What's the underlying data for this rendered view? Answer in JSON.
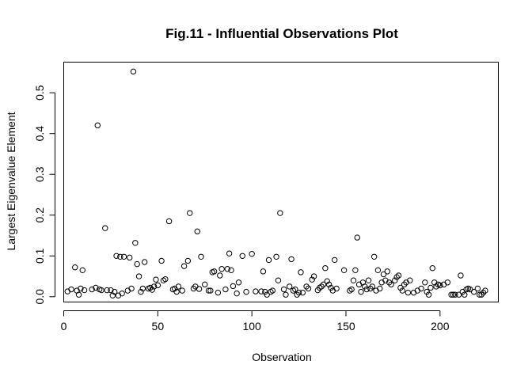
{
  "chart_data": {
    "type": "scatter",
    "title": "Fig.11 - Influential Observations Plot",
    "xlabel": "Observation",
    "ylabel": "Largest Eigenvalue Element",
    "xlim": [
      0,
      231
    ],
    "ylim": [
      -0.013,
      0.575
    ],
    "xticks": [
      0,
      50,
      100,
      150,
      200
    ],
    "yticks": [
      0.0,
      0.1,
      0.2,
      0.3,
      0.4,
      0.5
    ],
    "xtick_labels": [
      "0",
      "50",
      "100",
      "150",
      "200"
    ],
    "ytick_labels": [
      "0.0",
      "0.1",
      "0.2",
      "0.3",
      "0.4",
      "0.5"
    ],
    "grid": false,
    "legend": false,
    "marker": "open-circle",
    "points": [
      [
        2,
        0.013
      ],
      [
        4,
        0.018
      ],
      [
        6,
        0.072
      ],
      [
        7,
        0.015
      ],
      [
        8,
        0.005
      ],
      [
        9,
        0.02
      ],
      [
        10,
        0.065
      ],
      [
        11,
        0.016
      ],
      [
        15,
        0.018
      ],
      [
        17,
        0.022
      ],
      [
        18,
        0.42
      ],
      [
        19,
        0.018
      ],
      [
        20,
        0.016
      ],
      [
        22,
        0.168
      ],
      [
        23,
        0.016
      ],
      [
        25,
        0.016
      ],
      [
        26,
        0.003
      ],
      [
        27,
        0.012
      ],
      [
        28,
        0.1
      ],
      [
        29,
        0.003
      ],
      [
        30,
        0.098
      ],
      [
        31,
        0.008
      ],
      [
        32,
        0.098
      ],
      [
        34,
        0.015
      ],
      [
        35,
        0.096
      ],
      [
        36,
        0.02
      ],
      [
        37,
        0.552
      ],
      [
        38,
        0.132
      ],
      [
        39,
        0.08
      ],
      [
        40,
        0.05
      ],
      [
        41,
        0.012
      ],
      [
        42,
        0.02
      ],
      [
        43,
        0.085
      ],
      [
        45,
        0.02
      ],
      [
        46,
        0.022
      ],
      [
        47,
        0.017
      ],
      [
        48,
        0.025
      ],
      [
        49,
        0.042
      ],
      [
        50,
        0.028
      ],
      [
        52,
        0.088
      ],
      [
        53,
        0.04
      ],
      [
        54,
        0.043
      ],
      [
        56,
        0.185
      ],
      [
        58,
        0.018
      ],
      [
        59,
        0.02
      ],
      [
        60,
        0.012
      ],
      [
        61,
        0.025
      ],
      [
        63,
        0.015
      ],
      [
        64,
        0.075
      ],
      [
        66,
        0.088
      ],
      [
        67,
        0.205
      ],
      [
        69,
        0.02
      ],
      [
        70,
        0.025
      ],
      [
        71,
        0.16
      ],
      [
        72,
        0.019
      ],
      [
        73,
        0.098
      ],
      [
        75,
        0.03
      ],
      [
        77,
        0.015
      ],
      [
        78,
        0.015
      ],
      [
        79,
        0.06
      ],
      [
        80,
        0.062
      ],
      [
        82,
        0.01
      ],
      [
        83,
        0.052
      ],
      [
        84,
        0.068
      ],
      [
        86,
        0.018
      ],
      [
        87,
        0.068
      ],
      [
        88,
        0.106
      ],
      [
        89,
        0.065
      ],
      [
        90,
        0.026
      ],
      [
        92,
        0.008
      ],
      [
        93,
        0.035
      ],
      [
        95,
        0.1
      ],
      [
        97,
        0.012
      ],
      [
        100,
        0.105
      ],
      [
        102,
        0.013
      ],
      [
        105,
        0.013
      ],
      [
        106,
        0.062
      ],
      [
        107,
        0.012
      ],
      [
        108,
        0.005
      ],
      [
        109,
        0.09
      ],
      [
        110,
        0.012
      ],
      [
        111,
        0.015
      ],
      [
        113,
        0.098
      ],
      [
        114,
        0.04
      ],
      [
        115,
        0.205
      ],
      [
        117,
        0.018
      ],
      [
        118,
        0.005
      ],
      [
        120,
        0.025
      ],
      [
        121,
        0.092
      ],
      [
        122,
        0.015
      ],
      [
        123,
        0.018
      ],
      [
        124,
        0.005
      ],
      [
        125,
        0.01
      ],
      [
        126,
        0.06
      ],
      [
        127,
        0.01
      ],
      [
        129,
        0.025
      ],
      [
        130,
        0.02
      ],
      [
        132,
        0.042
      ],
      [
        133,
        0.05
      ],
      [
        135,
        0.016
      ],
      [
        136,
        0.022
      ],
      [
        137,
        0.025
      ],
      [
        138,
        0.03
      ],
      [
        139,
        0.07
      ],
      [
        140,
        0.038
      ],
      [
        141,
        0.03
      ],
      [
        142,
        0.022
      ],
      [
        143,
        0.015
      ],
      [
        144,
        0.09
      ],
      [
        145,
        0.02
      ],
      [
        149,
        0.065
      ],
      [
        152,
        0.015
      ],
      [
        153,
        0.018
      ],
      [
        154,
        0.04
      ],
      [
        155,
        0.065
      ],
      [
        156,
        0.145
      ],
      [
        157,
        0.03
      ],
      [
        158,
        0.012
      ],
      [
        159,
        0.035
      ],
      [
        160,
        0.025
      ],
      [
        161,
        0.018
      ],
      [
        162,
        0.04
      ],
      [
        163,
        0.02
      ],
      [
        164,
        0.025
      ],
      [
        165,
        0.098
      ],
      [
        166,
        0.015
      ],
      [
        167,
        0.065
      ],
      [
        168,
        0.02
      ],
      [
        169,
        0.035
      ],
      [
        170,
        0.055
      ],
      [
        171,
        0.04
      ],
      [
        172,
        0.062
      ],
      [
        173,
        0.035
      ],
      [
        174,
        0.03
      ],
      [
        176,
        0.04
      ],
      [
        177,
        0.048
      ],
      [
        178,
        0.052
      ],
      [
        179,
        0.022
      ],
      [
        180,
        0.015
      ],
      [
        181,
        0.03
      ],
      [
        182,
        0.035
      ],
      [
        183,
        0.01
      ],
      [
        184,
        0.04
      ],
      [
        186,
        0.01
      ],
      [
        188,
        0.015
      ],
      [
        190,
        0.02
      ],
      [
        192,
        0.035
      ],
      [
        193,
        0.012
      ],
      [
        194,
        0.005
      ],
      [
        195,
        0.022
      ],
      [
        196,
        0.07
      ],
      [
        197,
        0.035
      ],
      [
        198,
        0.025
      ],
      [
        199,
        0.03
      ],
      [
        200,
        0.028
      ],
      [
        202,
        0.03
      ],
      [
        204,
        0.035
      ],
      [
        206,
        0.005
      ],
      [
        207,
        0.005
      ],
      [
        208,
        0.005
      ],
      [
        210,
        0.005
      ],
      [
        211,
        0.052
      ],
      [
        212,
        0.012
      ],
      [
        213,
        0.005
      ],
      [
        214,
        0.018
      ],
      [
        215,
        0.02
      ],
      [
        216,
        0.018
      ],
      [
        218,
        0.012
      ],
      [
        220,
        0.02
      ],
      [
        221,
        0.005
      ],
      [
        222,
        0.005
      ],
      [
        223,
        0.01
      ],
      [
        224,
        0.015
      ]
    ]
  }
}
